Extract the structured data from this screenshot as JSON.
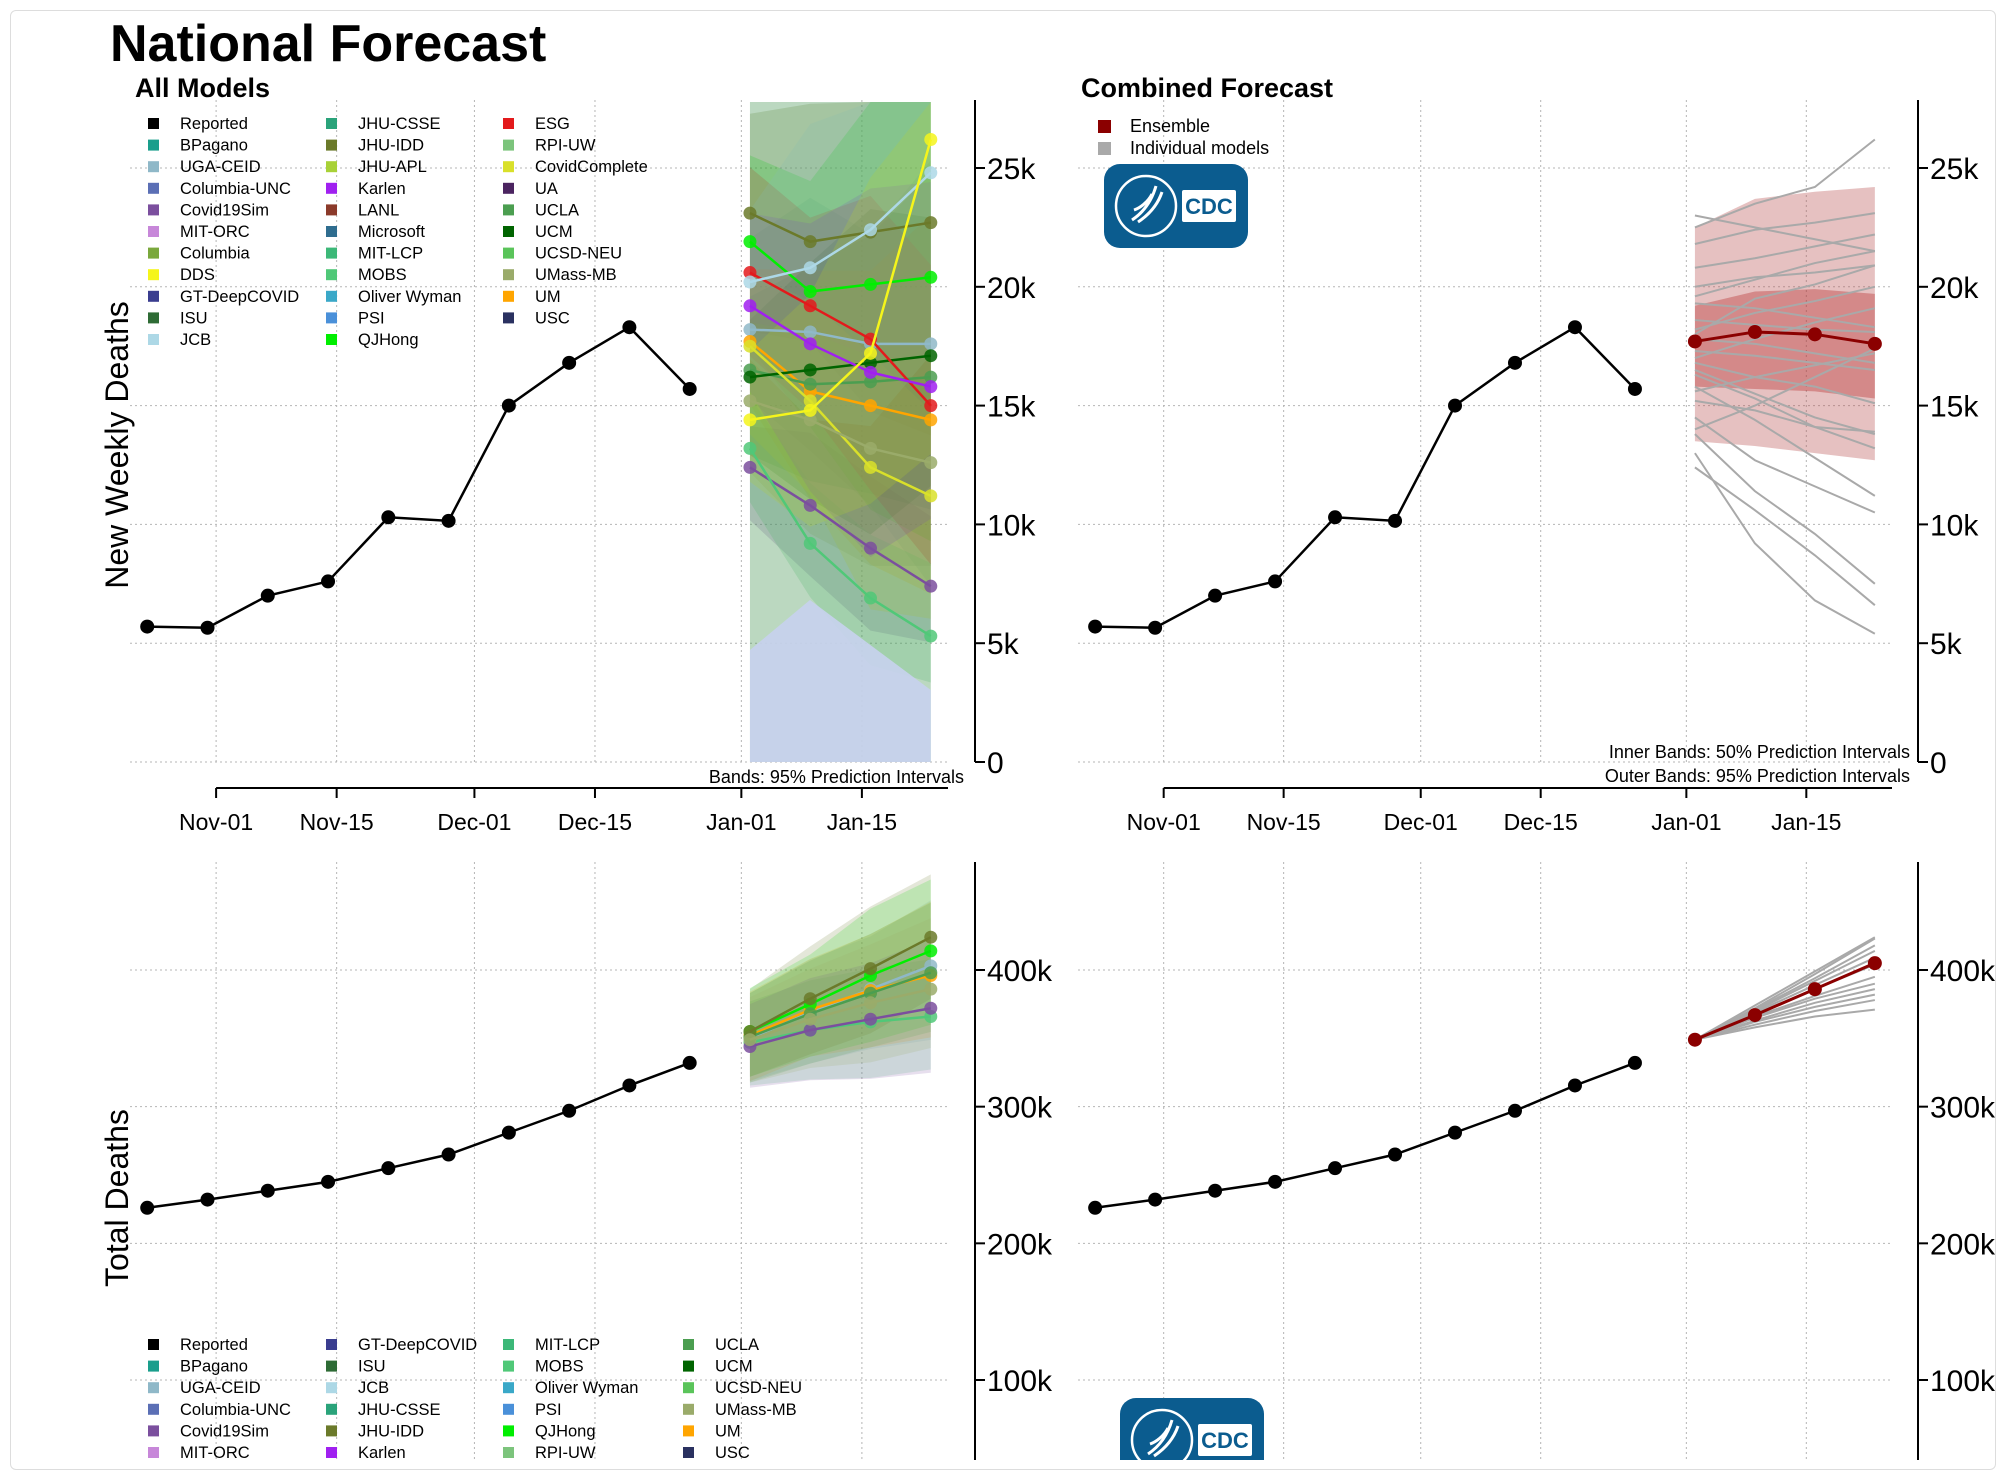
{
  "page_title": "National Forecast",
  "colors": {
    "ensemble": "#8b0000",
    "individual": "#a9a9a9",
    "reported": "#000000",
    "cdc_logo": "#0b5c8f"
  },
  "cdc_logo_text": "CDC",
  "chart_data": [
    {
      "id": "all-models-weekly",
      "type": "line",
      "title": "All Models",
      "ylabel": "New Weekly Deaths",
      "ylim": [
        0,
        28000
      ],
      "y_ticks": [
        0,
        5000,
        10000,
        15000,
        20000,
        25000
      ],
      "y_tick_labels": [
        "0",
        "5k",
        "10k",
        "15k",
        "20k",
        "25k"
      ],
      "x_range": [
        "2020-10-22",
        "2021-01-25"
      ],
      "x_ticks": [
        "2020-11-01",
        "2020-11-15",
        "2020-12-01",
        "2020-12-15",
        "2021-01-01",
        "2021-01-15"
      ],
      "x_tick_labels": [
        "Nov-01",
        "Nov-15",
        "Dec-01",
        "Dec-15",
        "Jan-01",
        "Jan-15"
      ],
      "annotation": "Bands: 95% Prediction Intervals",
      "legend_position": "top-left",
      "legend": [
        "Reported",
        "BPagano",
        "UGA-CEID",
        "Columbia-UNC",
        "Covid19Sim",
        "MIT-ORC",
        "Columbia",
        "DDS",
        "GT-DeepCOVID",
        "ISU",
        "JCB",
        "JHU-CSSE",
        "JHU-IDD",
        "JHU-APL",
        "Karlen",
        "LANL",
        "Microsoft",
        "MIT-LCP",
        "MOBS",
        "Oliver Wyman",
        "PSI",
        "QJHong",
        "ESG",
        "RPI-UW",
        "CovidComplete",
        "UA",
        "UCLA",
        "UCM",
        "UCSD-NEU",
        "UMass-MB",
        "UM",
        "USC"
      ],
      "legend_colors": [
        "#000000",
        "#1a9e8c",
        "#8fb8c8",
        "#5b6fb5",
        "#7b4f9e",
        "#c787d9",
        "#7aa83c",
        "#f5f51b",
        "#3a3d8f",
        "#2e6b35",
        "#add8e6",
        "#2aa37a",
        "#6b7a2a",
        "#a8d137",
        "#a020f0",
        "#8b3a2a",
        "#2f6d8f",
        "#3cb878",
        "#50c878",
        "#3aa8c8",
        "#4a90d9",
        "#00ee00",
        "#e31a1c",
        "#7cc47c",
        "#d9e02a",
        "#4b2460",
        "#4b9e50",
        "#006400",
        "#5ac45a",
        "#9aab6a",
        "#ffa500",
        "#2a3160"
      ],
      "reported": {
        "x": [
          "2020-10-24",
          "2020-10-31",
          "2020-11-07",
          "2020-11-14",
          "2020-11-21",
          "2020-11-28",
          "2020-12-05",
          "2020-12-12",
          "2020-12-19",
          "2020-12-26"
        ],
        "y": [
          5700,
          5650,
          7000,
          7600,
          10300,
          10150,
          15000,
          16800,
          18300,
          15700
        ]
      },
      "forecast_x": [
        "2021-01-02",
        "2021-01-09",
        "2021-01-16",
        "2021-01-23"
      ],
      "forecast_series": [
        {
          "model": "UGA-CEID",
          "y": [
            18200,
            18100,
            17600,
            17600
          ]
        },
        {
          "model": "Covid19Sim",
          "y": [
            12400,
            10800,
            9000,
            7400
          ]
        },
        {
          "model": "JHU-IDD",
          "y": [
            23100,
            21900,
            22300,
            22700
          ]
        },
        {
          "model": "QJHong",
          "y": [
            21900,
            19800,
            20100,
            20400
          ]
        },
        {
          "model": "UM",
          "y": [
            17700,
            15600,
            15000,
            14400
          ]
        },
        {
          "model": "UCLA",
          "y": [
            16500,
            15900,
            16000,
            16200
          ]
        },
        {
          "model": "UCM",
          "y": [
            16200,
            16500,
            16800,
            17100
          ]
        },
        {
          "model": "MOBS",
          "y": [
            13200,
            9200,
            6900,
            5300
          ]
        },
        {
          "model": "CovidComplete",
          "y": [
            17500,
            15200,
            12400,
            11200
          ]
        },
        {
          "model": "ESG",
          "y": [
            20600,
            19200,
            17800,
            15000
          ]
        },
        {
          "model": "Karlen",
          "y": [
            19200,
            17600,
            16400,
            15800
          ]
        },
        {
          "model": "JCB",
          "y": [
            20200,
            20800,
            22400,
            24800
          ]
        },
        {
          "model": "UMass-MB",
          "y": [
            15200,
            14400,
            13200,
            12600
          ]
        },
        {
          "model": "DDS",
          "y": [
            14400,
            14800,
            17200,
            26200
          ]
        }
      ]
    },
    {
      "id": "combined-weekly",
      "type": "line",
      "title": "Combined Forecast",
      "ylim": [
        0,
        28000
      ],
      "y_ticks": [
        0,
        5000,
        10000,
        15000,
        20000,
        25000
      ],
      "y_tick_labels": [
        "0",
        "5k",
        "10k",
        "15k",
        "20k",
        "25k"
      ],
      "x_range": [
        "2020-10-22",
        "2021-01-25"
      ],
      "x_ticks": [
        "2020-11-01",
        "2020-11-15",
        "2020-12-01",
        "2020-12-15",
        "2021-01-01",
        "2021-01-15"
      ],
      "x_tick_labels": [
        "Nov-01",
        "Nov-15",
        "Dec-01",
        "Dec-15",
        "Jan-01",
        "Jan-15"
      ],
      "annotations": [
        "Inner Bands: 50% Prediction Intervals",
        "Outer Bands: 95% Prediction Intervals"
      ],
      "legend_position": "top-left",
      "legend": [
        "Ensemble",
        "Individual models"
      ],
      "reported": {
        "x": [
          "2020-10-24",
          "2020-10-31",
          "2020-11-07",
          "2020-11-14",
          "2020-11-21",
          "2020-11-28",
          "2020-12-05",
          "2020-12-12",
          "2020-12-19",
          "2020-12-26"
        ],
        "y": [
          5700,
          5650,
          7000,
          7600,
          10300,
          10150,
          15000,
          16800,
          18300,
          15700
        ]
      },
      "ensemble": {
        "x": [
          "2021-01-02",
          "2021-01-09",
          "2021-01-16",
          "2021-01-23"
        ],
        "y": [
          17700,
          18100,
          18000,
          17600
        ],
        "inner_low": [
          15800,
          15700,
          15600,
          15300
        ],
        "inner_high": [
          19200,
          19800,
          19900,
          19700
        ],
        "outer_low": [
          13500,
          13300,
          13000,
          12700
        ],
        "outer_high": [
          22500,
          23700,
          24000,
          24200
        ]
      },
      "individual_series": [
        [
          23000,
          22500,
          22000,
          21500
        ],
        [
          22500,
          23500,
          24200,
          26200
        ],
        [
          21800,
          22400,
          22700,
          23100
        ],
        [
          20800,
          21200,
          21700,
          22200
        ],
        [
          20000,
          20400,
          20600,
          20900
        ],
        [
          19300,
          19100,
          18700,
          18300
        ],
        [
          18600,
          18400,
          18200,
          18100
        ],
        [
          18200,
          18900,
          19400,
          20000
        ],
        [
          17800,
          17600,
          17200,
          16800
        ],
        [
          17300,
          17100,
          16800,
          16500
        ],
        [
          16800,
          16200,
          15800,
          15100
        ],
        [
          16300,
          15300,
          14100,
          13200
        ],
        [
          15800,
          14400,
          12800,
          11200
        ],
        [
          15200,
          14800,
          14100,
          13900
        ],
        [
          14500,
          12700,
          11600,
          10500
        ],
        [
          13800,
          11400,
          9600,
          7500
        ],
        [
          13000,
          9200,
          6800,
          5400
        ],
        [
          12400,
          10600,
          8700,
          6600
        ],
        [
          17000,
          17800,
          18500,
          19100
        ],
        [
          18000,
          19500,
          20100,
          20900
        ],
        [
          16500,
          15500,
          14500,
          13800
        ],
        [
          14000,
          15000,
          16200,
          17400
        ],
        [
          19600,
          20300,
          21000,
          21500
        ],
        [
          15600,
          16200,
          16700,
          17200
        ]
      ]
    },
    {
      "id": "all-models-total",
      "type": "line",
      "ylabel": "Total Deaths",
      "ylim": [
        0,
        460000
      ],
      "y_ticks": [
        100000,
        200000,
        300000,
        400000
      ],
      "y_tick_labels": [
        "100k",
        "200k",
        "300k",
        "400k"
      ],
      "x_range": [
        "2020-10-22",
        "2021-01-25"
      ],
      "legend_position": "bottom-left",
      "legend": [
        "Reported",
        "BPagano",
        "UGA-CEID",
        "Columbia-UNC",
        "Covid19Sim",
        "MIT-ORC",
        "GT-DeepCOVID",
        "ISU",
        "JCB",
        "JHU-CSSE",
        "JHU-IDD",
        "Karlen",
        "MIT-LCP",
        "MOBS",
        "Oliver Wyman",
        "PSI",
        "QJHong",
        "RPI-UW",
        "UCLA",
        "UCM",
        "UCSD-NEU",
        "UMass-MB",
        "UM",
        "USC"
      ],
      "legend_colors": [
        "#000000",
        "#1a9e8c",
        "#8fb8c8",
        "#5b6fb5",
        "#7b4f9e",
        "#c787d9",
        "#3a3d8f",
        "#2e6b35",
        "#add8e6",
        "#2aa37a",
        "#6b7a2a",
        "#a020f0",
        "#3cb878",
        "#50c878",
        "#3aa8c8",
        "#4a90d9",
        "#00ee00",
        "#7cc47c",
        "#4b9e50",
        "#006400",
        "#5ac45a",
        "#9aab6a",
        "#ffa500",
        "#2a3160"
      ],
      "reported": {
        "x": [
          "2020-10-24",
          "2020-10-31",
          "2020-11-07",
          "2020-11-14",
          "2020-11-21",
          "2020-11-28",
          "2020-12-05",
          "2020-12-12",
          "2020-12-19",
          "2020-12-26"
        ],
        "y": [
          226000,
          232000,
          238500,
          245000,
          255000,
          265000,
          281000,
          297000,
          315500,
          332000
        ]
      },
      "forecast_x": [
        "2021-01-02",
        "2021-01-09",
        "2021-01-16",
        "2021-01-23"
      ],
      "forecast_series": [
        {
          "model": "UGA-CEID",
          "y": [
            350000,
            369000,
            386000,
            403000
          ]
        },
        {
          "model": "MOBS",
          "y": [
            347000,
            356000,
            362000,
            366000
          ]
        },
        {
          "model": "UM",
          "y": [
            352000,
            371000,
            385000,
            396000
          ]
        },
        {
          "model": "QJHong",
          "y": [
            355000,
            375000,
            396000,
            414000
          ]
        },
        {
          "model": "Covid19Sim",
          "y": [
            344000,
            356000,
            364000,
            372000
          ]
        },
        {
          "model": "UCLA",
          "y": [
            351000,
            368000,
            383000,
            398000
          ]
        },
        {
          "model": "JHU-IDD",
          "y": [
            355000,
            379000,
            401000,
            424000
          ]
        },
        {
          "model": "UMass-MB",
          "y": [
            349000,
            364000,
            376000,
            386000
          ]
        }
      ]
    },
    {
      "id": "combined-total",
      "type": "line",
      "ylim": [
        0,
        460000
      ],
      "y_ticks": [
        100000,
        200000,
        300000,
        400000
      ],
      "y_tick_labels": [
        "100k",
        "200k",
        "300k",
        "400k"
      ],
      "x_range": [
        "2020-10-22",
        "2021-01-25"
      ],
      "reported": {
        "x": [
          "2020-10-24",
          "2020-10-31",
          "2020-11-07",
          "2020-11-14",
          "2020-11-21",
          "2020-11-28",
          "2020-12-05",
          "2020-12-12",
          "2020-12-19",
          "2020-12-26"
        ],
        "y": [
          226000,
          232000,
          238500,
          245000,
          255000,
          265000,
          281000,
          297000,
          315500,
          332000
        ]
      },
      "ensemble": {
        "x": [
          "2021-01-02",
          "2021-01-09",
          "2021-01-16",
          "2021-01-23"
        ],
        "y": [
          349000,
          367000,
          386000,
          405000
        ]
      },
      "individual_series": [
        [
          349000,
          366000,
          381000,
          395000
        ],
        [
          349000,
          370000,
          392000,
          414000
        ],
        [
          349000,
          372000,
          397000,
          423000
        ],
        [
          349000,
          360000,
          370000,
          378000
        ],
        [
          349000,
          358000,
          366000,
          371000
        ],
        [
          349000,
          368000,
          386000,
          404000
        ],
        [
          349000,
          365000,
          379000,
          390000
        ],
        [
          349000,
          371000,
          394000,
          418000
        ],
        [
          349000,
          363000,
          376000,
          386000
        ],
        [
          349000,
          369000,
          389000,
          409000
        ],
        [
          349000,
          362000,
          373000,
          382000
        ],
        [
          349000,
          374000,
          399000,
          424000
        ]
      ]
    }
  ]
}
